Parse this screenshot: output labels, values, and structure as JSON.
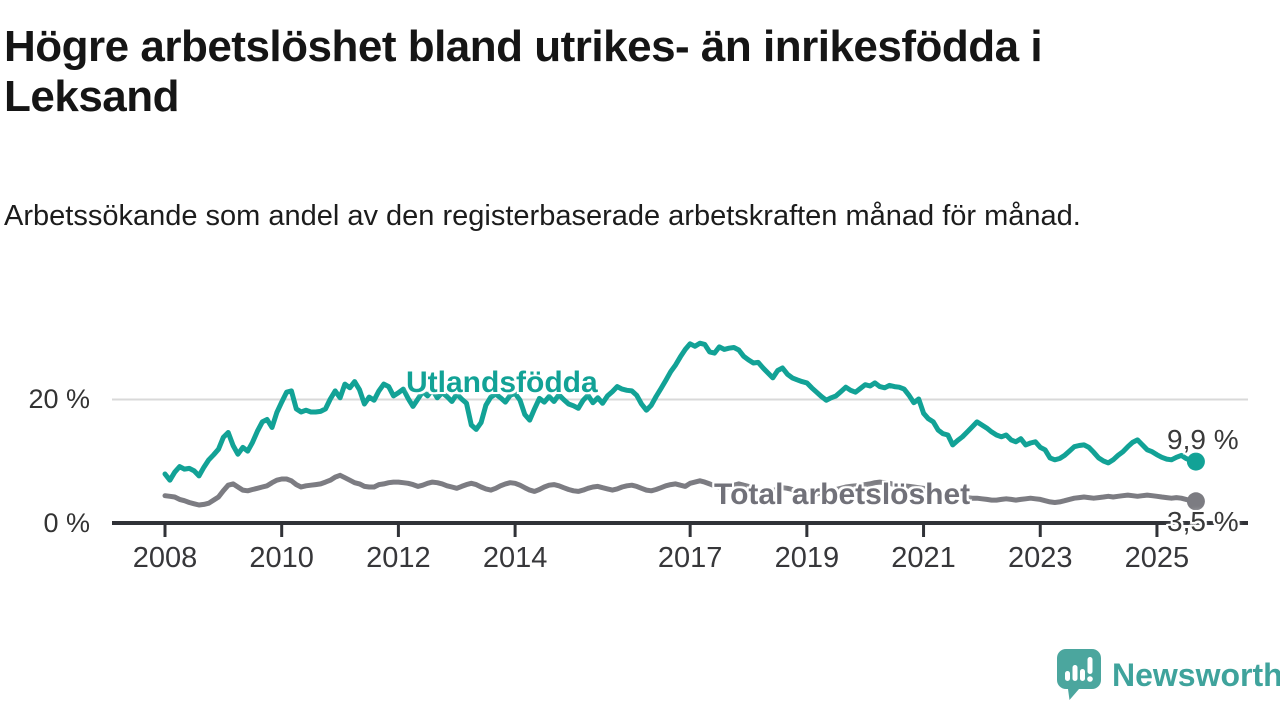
{
  "title": "Högre arbetslöshet bland utrikes- än inrikesfödda i Leksand",
  "subtitle": "Arbetssökande som andel av den registerbaserade arbetskraften månad för månad.",
  "branding": {
    "logo_text": "Newsworthy",
    "logo_color": "#3fa39c",
    "logo_icon": "speech-bubble-bar-chart"
  },
  "colors": {
    "series_utlandsfodda": "#12a296",
    "series_total": "#7c7c82",
    "total_label_text": "#717179",
    "axis": "#303237",
    "gridline": "#d9d9d9",
    "tick_text": "#37373a"
  },
  "chart_data": {
    "type": "line",
    "title": "Högre arbetslöshet bland utrikes- än inrikesfödda i Leksand",
    "subtitle": "Arbetssökande som andel av den registerbaserade arbetskraften månad för månad.",
    "unit": "%",
    "frequency": "monthly",
    "x_start": "2008-01",
    "x_end": "2025-09",
    "ylim": [
      0,
      32
    ],
    "grid": "single horizontal gridline at 20 %",
    "legend_position": "inline-labels-on-lines",
    "x_ticks": [
      2008,
      2010,
      2012,
      2014,
      2017,
      2019,
      2021,
      2023,
      2025
    ],
    "y_ticks": [
      {
        "value": 20,
        "label": "20 %"
      },
      {
        "value": 0,
        "label": "0 %"
      }
    ],
    "series": [
      {
        "name": "Utlandsfödda",
        "color": "#12a296",
        "end_label": "9,9 %",
        "end_value": 9.9,
        "values": [
          7.9,
          6.9,
          8.2,
          9.1,
          8.7,
          8.8,
          8.4,
          7.6,
          9.0,
          10.2,
          11.0,
          11.9,
          13.8,
          14.6,
          12.5,
          11.1,
          12.2,
          11.6,
          13.0,
          14.8,
          16.3,
          16.7,
          15.4,
          17.8,
          19.5,
          21.1,
          21.3,
          18.4,
          17.9,
          18.2,
          17.9,
          17.9,
          18.0,
          18.4,
          20.0,
          21.3,
          20.2,
          22.4,
          21.8,
          22.8,
          21.5,
          19.2,
          20.3,
          19.8,
          21.3,
          22.4,
          22.0,
          20.5,
          21.0,
          21.6,
          20.1,
          18.8,
          20.0,
          21.2,
          20.5,
          21.5,
          20.2,
          21.0,
          20.4,
          19.6,
          20.8,
          20.0,
          19.3,
          15.8,
          15.1,
          16.2,
          19.0,
          20.3,
          20.8,
          20.2,
          19.5,
          20.6,
          20.9,
          19.8,
          17.5,
          16.6,
          18.4,
          20.1,
          19.5,
          20.4,
          19.6,
          20.7,
          19.9,
          19.2,
          18.9,
          18.5,
          19.8,
          20.6,
          19.4,
          20.2,
          19.3,
          20.5,
          21.2,
          22.0,
          21.6,
          21.4,
          21.3,
          20.6,
          19.2,
          18.2,
          19.0,
          20.4,
          21.7,
          23.0,
          24.4,
          25.5,
          26.8,
          28.0,
          28.9,
          28.5,
          29.0,
          28.8,
          27.6,
          27.4,
          28.4,
          28.0,
          28.2,
          28.3,
          27.9,
          26.9,
          26.3,
          25.8,
          25.9,
          25.0,
          24.2,
          23.4,
          24.6,
          25.0,
          24.0,
          23.4,
          23.1,
          22.8,
          22.6,
          21.8,
          21.1,
          20.4,
          19.8,
          20.2,
          20.5,
          21.2,
          21.9,
          21.4,
          21.1,
          21.7,
          22.3,
          22.1,
          22.6,
          22.0,
          21.8,
          22.2,
          22.0,
          21.9,
          21.6,
          20.6,
          19.4,
          20.0,
          17.7,
          16.8,
          16.3,
          15.0,
          14.4,
          14.2,
          12.6,
          13.3,
          13.9,
          14.7,
          15.5,
          16.3,
          15.8,
          15.3,
          14.7,
          14.2,
          13.9,
          14.2,
          13.4,
          13.1,
          13.6,
          12.6,
          12.9,
          13.1,
          12.2,
          11.8,
          10.5,
          10.2,
          10.4,
          10.9,
          11.6,
          12.3,
          12.5,
          12.6,
          12.2,
          11.4,
          10.5,
          10.0,
          9.7,
          10.2,
          10.9,
          11.5,
          12.3,
          13.0,
          13.4,
          12.6,
          11.8,
          11.5,
          11.0,
          10.6,
          10.3,
          10.2,
          10.6,
          10.9,
          10.4,
          10.1,
          9.9
        ]
      },
      {
        "name": "Total arbetslöshet",
        "color": "#7c7c82",
        "end_label": "3,5 %",
        "end_value": 3.5,
        "values": [
          4.4,
          4.3,
          4.2,
          3.8,
          3.6,
          3.3,
          3.1,
          2.9,
          3.0,
          3.2,
          3.7,
          4.2,
          5.2,
          6.1,
          6.3,
          5.8,
          5.3,
          5.2,
          5.4,
          5.6,
          5.8,
          6.0,
          6.5,
          6.9,
          7.1,
          7.1,
          6.8,
          6.2,
          5.8,
          6.0,
          6.1,
          6.2,
          6.3,
          6.6,
          6.9,
          7.4,
          7.7,
          7.3,
          6.9,
          6.5,
          6.3,
          5.9,
          5.8,
          5.8,
          6.2,
          6.3,
          6.5,
          6.6,
          6.6,
          6.5,
          6.4,
          6.2,
          5.9,
          6.1,
          6.4,
          6.6,
          6.5,
          6.3,
          6.0,
          5.8,
          5.6,
          5.9,
          6.2,
          6.4,
          6.2,
          5.8,
          5.5,
          5.3,
          5.6,
          6.0,
          6.3,
          6.5,
          6.4,
          6.1,
          5.7,
          5.3,
          5.1,
          5.4,
          5.8,
          6.1,
          6.2,
          6.0,
          5.7,
          5.4,
          5.2,
          5.1,
          5.3,
          5.6,
          5.8,
          5.9,
          5.7,
          5.5,
          5.3,
          5.5,
          5.8,
          6.0,
          6.1,
          5.9,
          5.6,
          5.3,
          5.2,
          5.4,
          5.7,
          6.0,
          6.2,
          6.3,
          6.1,
          5.9,
          6.4,
          6.6,
          6.8,
          6.6,
          6.3,
          6.0,
          5.8,
          5.7,
          5.9,
          6.1,
          6.3,
          6.1,
          5.9,
          5.6,
          5.3,
          5.1,
          5.0,
          5.2,
          5.5,
          5.7,
          5.6,
          5.4,
          5.2,
          5.1,
          5.0,
          4.8,
          4.7,
          4.8,
          5.0,
          5.2,
          5.4,
          5.6,
          5.8,
          5.9,
          6.0,
          6.1,
          6.2,
          6.3,
          6.5,
          6.6,
          6.5,
          6.4,
          6.2,
          6.1,
          6.0,
          5.9,
          5.8,
          5.7,
          5.6,
          5.4,
          5.2,
          5.0,
          4.8,
          4.6,
          4.4,
          4.3,
          4.2,
          4.1,
          4.0,
          4.0,
          3.9,
          3.8,
          3.7,
          3.7,
          3.8,
          3.9,
          3.8,
          3.7,
          3.8,
          3.9,
          4.0,
          3.9,
          3.8,
          3.6,
          3.4,
          3.3,
          3.4,
          3.6,
          3.8,
          4.0,
          4.1,
          4.2,
          4.1,
          4.0,
          4.1,
          4.2,
          4.3,
          4.2,
          4.3,
          4.4,
          4.5,
          4.4,
          4.3,
          4.4,
          4.5,
          4.4,
          4.3,
          4.2,
          4.1,
          4.0,
          4.1,
          4.0,
          3.8,
          3.6,
          3.5
        ]
      }
    ]
  }
}
